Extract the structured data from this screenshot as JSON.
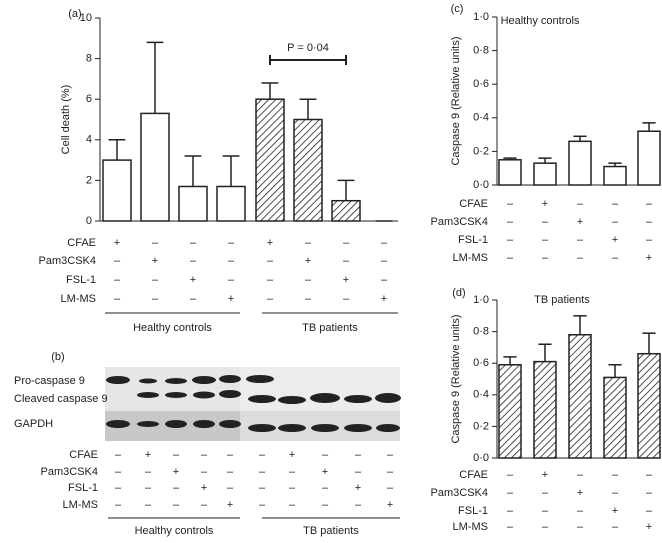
{
  "chart_data": [
    {
      "type": "bar",
      "panel_label": "(a)",
      "ylabel": "Cell death (%)",
      "categories": [
        "1",
        "2",
        "3",
        "4",
        "5",
        "6",
        "7",
        "8"
      ],
      "values": [
        3,
        5.3,
        1.7,
        1.7,
        6,
        5,
        1,
        0
      ],
      "errors": [
        1,
        3.5,
        1.5,
        1.5,
        0.8,
        1,
        1,
        0
      ],
      "hatched": [
        false,
        false,
        false,
        false,
        true,
        true,
        true,
        true
      ],
      "ylim": [
        0,
        10
      ],
      "yticks": [
        0,
        2,
        4,
        6,
        8,
        10
      ],
      "annotation": "P = 0·04",
      "treatments": {
        "rows": [
          "CFAE",
          "Pam3CSK4",
          "FSL-1",
          "LM-MS"
        ],
        "signs": [
          [
            "+",
            "–",
            "–",
            "–",
            "+",
            "–",
            "–",
            "–"
          ],
          [
            "–",
            "+",
            "–",
            "–",
            "–",
            "+",
            "–",
            "–"
          ],
          [
            "–",
            "–",
            "+",
            "–",
            "–",
            "–",
            "+",
            "–"
          ],
          [
            "–",
            "–",
            "–",
            "+",
            "–",
            "–",
            "–",
            "+"
          ]
        ]
      },
      "groups": [
        "Healthy controls",
        "TB patients"
      ]
    },
    {
      "type": "bar",
      "panel_label": "(c)",
      "title": "Healthy controls",
      "ylabel": "Caspase 9 (Relative units)",
      "categories": [
        "1",
        "2",
        "3",
        "4",
        "5"
      ],
      "values": [
        0.15,
        0.13,
        0.26,
        0.11,
        0.32
      ],
      "errors": [
        0.01,
        0.03,
        0.03,
        0.02,
        0.05
      ],
      "hatched": [
        false,
        false,
        false,
        false,
        false
      ],
      "ylim": [
        0,
        1
      ],
      "yticks": [
        {
          "value": 0,
          "label": "0·0"
        },
        {
          "value": 0.2,
          "label": "0·2"
        },
        {
          "value": 0.4,
          "label": "0·4"
        },
        {
          "value": 0.6,
          "label": "0·6"
        },
        {
          "value": 0.8,
          "label": "0·8"
        },
        {
          "value": 1,
          "label": "1·0"
        }
      ],
      "treatments": {
        "rows": [
          "CFAE",
          "Pam3CSK4",
          "FSL-1",
          "LM-MS"
        ],
        "signs": [
          [
            "–",
            "+",
            "–",
            "–",
            "–"
          ],
          [
            "–",
            "–",
            "+",
            "–",
            "–"
          ],
          [
            "–",
            "–",
            "–",
            "+",
            "–"
          ],
          [
            "–",
            "–",
            "–",
            "–",
            "+"
          ]
        ]
      }
    },
    {
      "type": "bar",
      "panel_label": "(d)",
      "title": "TB patients",
      "ylabel": "Caspase 9 (Relative units)",
      "categories": [
        "1",
        "2",
        "3",
        "4",
        "5"
      ],
      "values": [
        0.59,
        0.61,
        0.78,
        0.51,
        0.66
      ],
      "errors": [
        0.05,
        0.11,
        0.12,
        0.08,
        0.13
      ],
      "hatched": [
        true,
        true,
        true,
        true,
        true
      ],
      "ylim": [
        0,
        1
      ],
      "yticks": [
        {
          "value": 0,
          "label": "0·0"
        },
        {
          "value": 0.2,
          "label": "0·2"
        },
        {
          "value": 0.4,
          "label": "0·4"
        },
        {
          "value": 0.6,
          "label": "0·6"
        },
        {
          "value": 0.8,
          "label": "0·8"
        },
        {
          "value": 1,
          "label": "1·0"
        }
      ],
      "treatments": {
        "rows": [
          "CFAE",
          "Pam3CSK4",
          "FSL-1",
          "LM-MS"
        ],
        "signs": [
          [
            "–",
            "+",
            "–",
            "–",
            "–"
          ],
          [
            "–",
            "–",
            "+",
            "–",
            "–"
          ],
          [
            "–",
            "–",
            "–",
            "+",
            "–"
          ],
          [
            "–",
            "–",
            "–",
            "–",
            "+"
          ]
        ]
      }
    }
  ],
  "blot": {
    "panel_label": "(b)",
    "bands": [
      "Pro-caspase 9",
      "Cleaved caspase 9",
      "GAPDH"
    ],
    "treatments": {
      "rows": [
        "CFAE",
        "Pam3CSK4",
        "FSL-1",
        "LM-MS"
      ],
      "signs": [
        [
          "–",
          "+",
          "–",
          "–",
          "–",
          "–",
          "+",
          "–",
          "–",
          "–"
        ],
        [
          "–",
          "–",
          "+",
          "–",
          "–",
          "–",
          "–",
          "+",
          "–",
          "–"
        ],
        [
          "–",
          "–",
          "–",
          "+",
          "–",
          "–",
          "–",
          "–",
          "+",
          "–"
        ],
        [
          "–",
          "–",
          "–",
          "–",
          "+",
          "–",
          "–",
          "–",
          "–",
          "+"
        ]
      ]
    },
    "groups": [
      "Healthy controls",
      "TB patients"
    ]
  }
}
